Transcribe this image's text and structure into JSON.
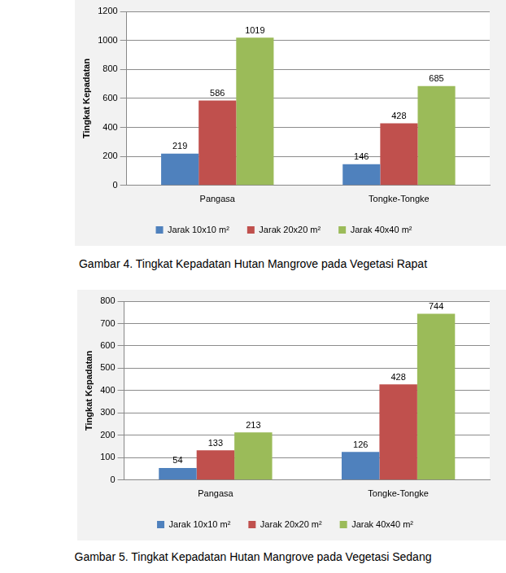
{
  "chart_data": [
    {
      "type": "bar",
      "title": "Gambar 4. Tingkat Kepadatan Hutan Mangrove pada Vegetasi Rapat",
      "y_label": "Tingkat Kepadatan",
      "categories": [
        "Pangasa",
        "Tongke-Tongke"
      ],
      "series": [
        {
          "name": "Jarak 10x10 m²",
          "color": "#4f81bd",
          "values": [
            219,
            146
          ]
        },
        {
          "name": "Jarak 20x20 m²",
          "color": "#c0504d",
          "values": [
            586,
            428
          ]
        },
        {
          "name": "Jarak 40x40 m²",
          "color": "#9bbb59",
          "values": [
            1019,
            685
          ]
        }
      ],
      "ylim": [
        0,
        1200
      ],
      "yticks": [
        0,
        200,
        400,
        600,
        800,
        1000,
        1200
      ],
      "grid": true,
      "data_labels": true,
      "legend": "bottom"
    },
    {
      "type": "bar",
      "title": "Gambar 5. Tingkat Kepadatan Hutan Mangrove pada Vegetasi Sedang",
      "y_label": "Tingkat Kepadatan",
      "categories": [
        "Pangasa",
        "Tongke-Tongke"
      ],
      "series": [
        {
          "name": "Jarak 10x10 m²",
          "color": "#4f81bd",
          "values": [
            54,
            126
          ]
        },
        {
          "name": "Jarak 20x20 m²",
          "color": "#c0504d",
          "values": [
            133,
            428
          ]
        },
        {
          "name": "Jarak 40x40 m²",
          "color": "#9bbb59",
          "values": [
            213,
            744
          ]
        }
      ],
      "ylim": [
        0,
        800
      ],
      "yticks": [
        0,
        100,
        200,
        300,
        400,
        500,
        600,
        700,
        800
      ],
      "grid": true,
      "data_labels": true,
      "legend": "bottom"
    }
  ]
}
